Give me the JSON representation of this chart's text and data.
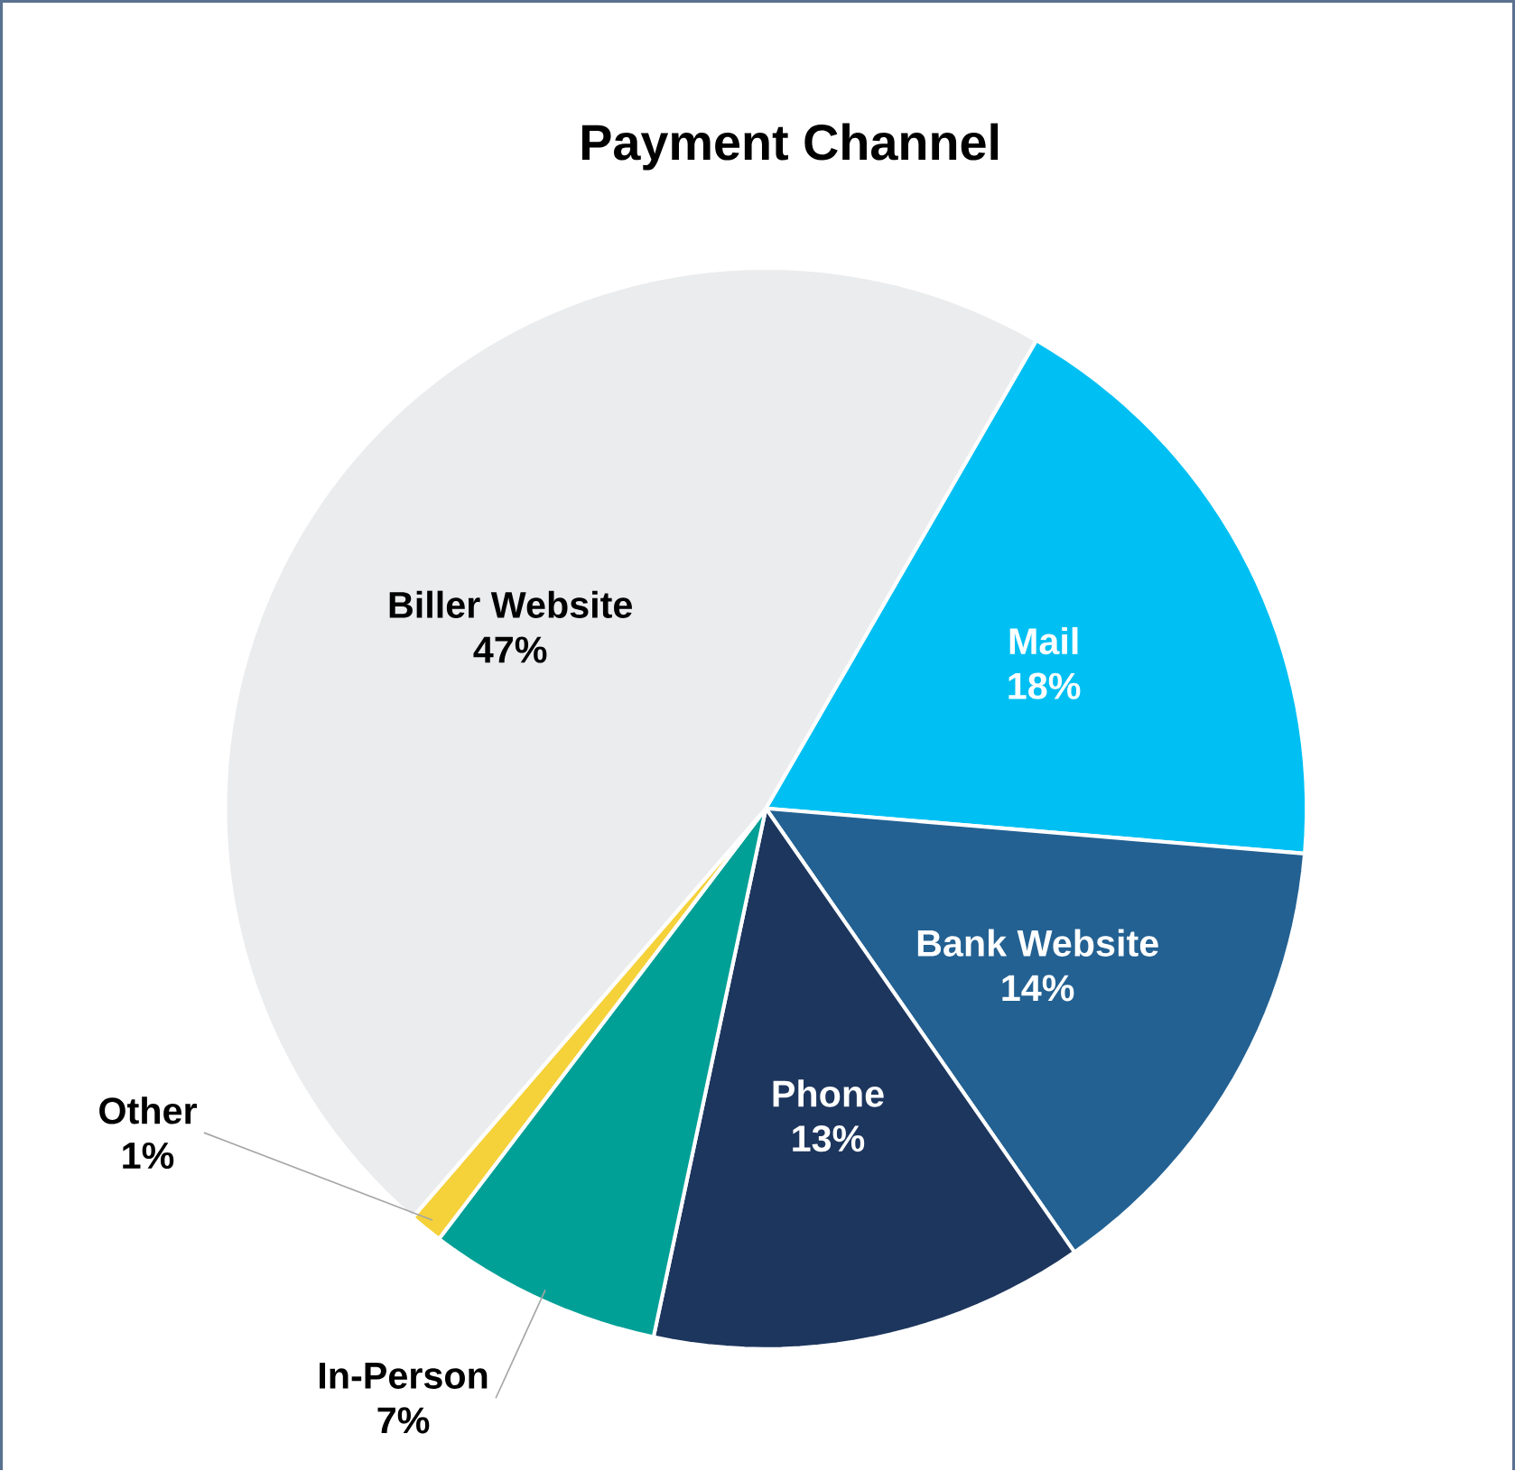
{
  "chart_data": {
    "type": "pie",
    "title": "Payment Channel",
    "categories": [
      "Mail",
      "Bank Website",
      "Phone",
      "In-Person",
      "Other",
      "Biller Website"
    ],
    "values": [
      18,
      14,
      13,
      7,
      1,
      47
    ],
    "colors": [
      "#00c0f3",
      "#236192",
      "#1d365e",
      "#00a096",
      "#f5d13a",
      "#ebecee"
    ],
    "value_labels": [
      "18%",
      "14%",
      "13%",
      "7%",
      "1%",
      "47%"
    ]
  }
}
